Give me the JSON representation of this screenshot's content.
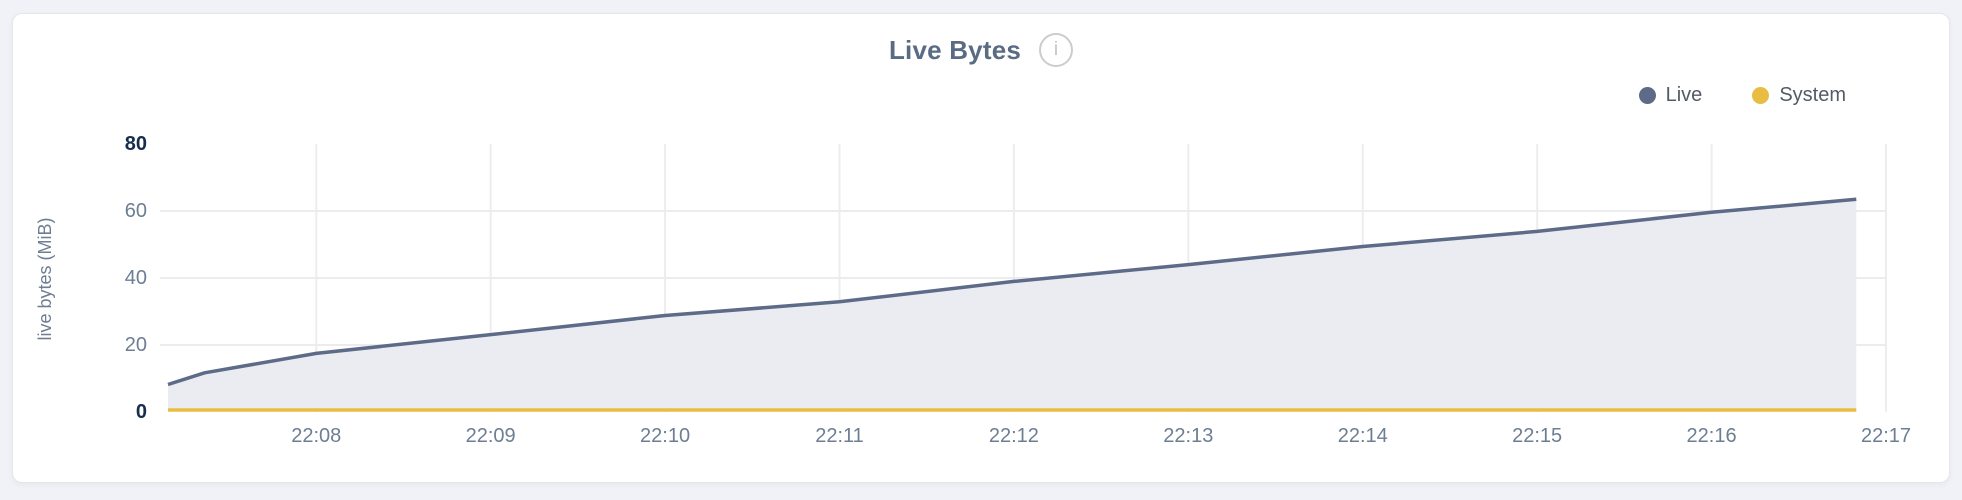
{
  "card": {
    "title": "Live Bytes",
    "info_icon": "i"
  },
  "legend": {
    "items": [
      {
        "label": "Live",
        "color": "#5d6b89"
      },
      {
        "label": "System",
        "color": "#e9bd41"
      }
    ]
  },
  "chart_data": {
    "type": "area",
    "title": "Live Bytes",
    "xlabel": "",
    "ylabel": "live bytes (MiB)",
    "ylim": [
      0,
      80
    ],
    "y_ticks": [
      0,
      20,
      40,
      60,
      80
    ],
    "y_ticks_emphasized": [
      0,
      80
    ],
    "x_ticks": [
      "22:08",
      "22:09",
      "22:10",
      "22:11",
      "22:12",
      "22:13",
      "22:14",
      "22:15",
      "22:16",
      "22:17"
    ],
    "x_tick_minutes": [
      0,
      1,
      2,
      3,
      4,
      5,
      6,
      7,
      8,
      9
    ],
    "x_range_minutes": [
      -0.85,
      9.0
    ],
    "grid": true,
    "legend_position": "top-right",
    "series": [
      {
        "name": "Live",
        "color": "#5d6b89",
        "fill": "#eaecf2",
        "points_minutes_vs_mib": [
          [
            -0.85,
            8.2
          ],
          [
            -0.64,
            11.7
          ],
          [
            0,
            17.5
          ],
          [
            1,
            23.1
          ],
          [
            2,
            28.8
          ],
          [
            3,
            32.9
          ],
          [
            4,
            39.0
          ],
          [
            5,
            44.0
          ],
          [
            6,
            49.4
          ],
          [
            7,
            53.9
          ],
          [
            8,
            59.6
          ],
          [
            8.83,
            63.5
          ]
        ]
      },
      {
        "name": "System",
        "color": "#e9bd41",
        "fill": null,
        "points_minutes_vs_mib": [
          [
            -0.85,
            0.6
          ],
          [
            8.83,
            0.6
          ]
        ]
      }
    ]
  }
}
